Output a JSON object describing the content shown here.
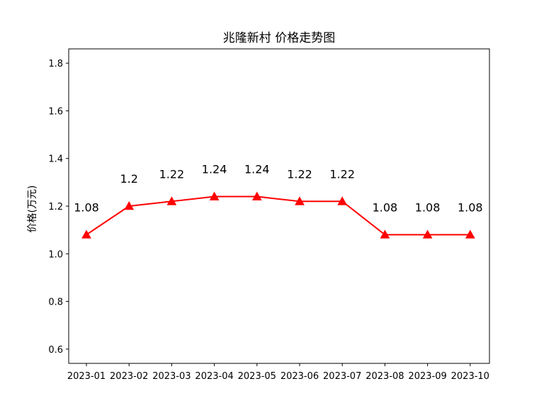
{
  "chart_data": {
    "type": "line",
    "title": "兆隆新村 价格走势图",
    "xlabel": "",
    "ylabel": "价格(万元)",
    "categories": [
      "2023-01",
      "2023-02",
      "2023-03",
      "2023-04",
      "2023-05",
      "2023-06",
      "2023-07",
      "2023-08",
      "2023-09",
      "2023-10"
    ],
    "values": [
      1.08,
      1.2,
      1.22,
      1.24,
      1.24,
      1.22,
      1.22,
      1.08,
      1.08,
      1.08
    ],
    "data_labels": [
      "1.08",
      "1.2",
      "1.22",
      "1.24",
      "1.24",
      "1.22",
      "1.22",
      "1.08",
      "1.08",
      "1.08"
    ],
    "ylim": [
      0.54,
      1.86
    ],
    "yticks": [
      0.6,
      0.8,
      1.0,
      1.2,
      1.4,
      1.6,
      1.8
    ],
    "ytick_labels": [
      "0.6",
      "0.8",
      "1.0",
      "1.2",
      "1.4",
      "1.6",
      "1.8"
    ],
    "line_color": "#ff0000",
    "marker": "triangle",
    "grid": false,
    "legend": "none"
  }
}
